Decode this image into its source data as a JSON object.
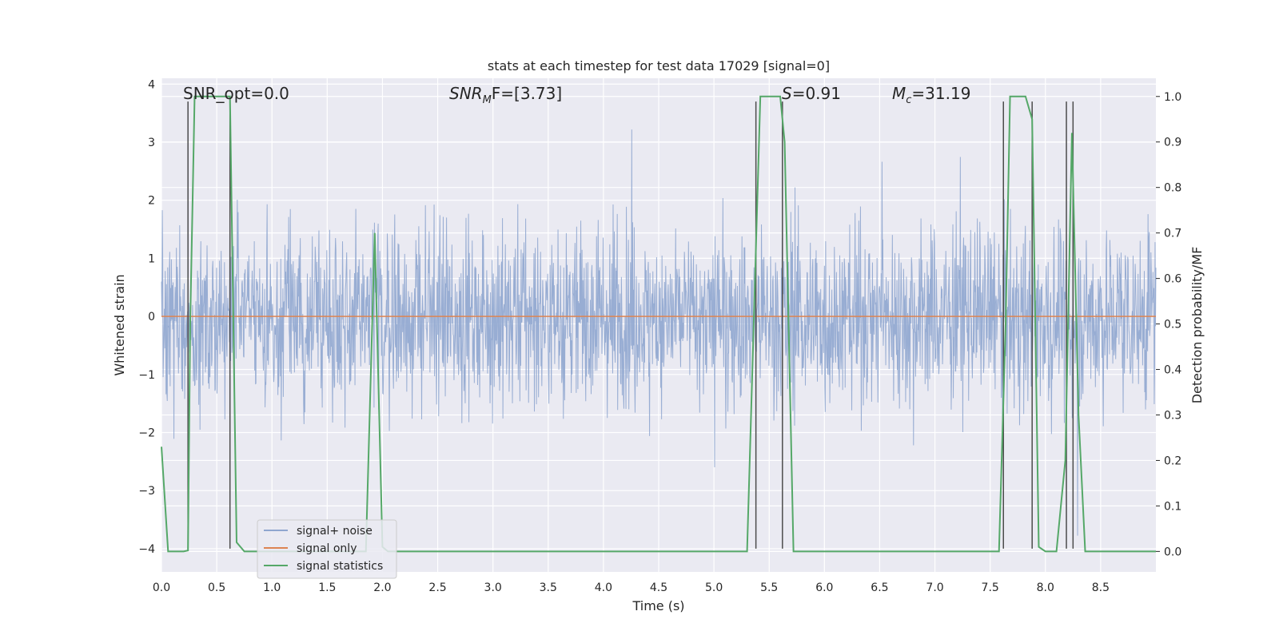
{
  "chart_data": {
    "type": "line",
    "title": "stats at each timestep for test data 17029 [signal=0]",
    "xlabel": "Time (s)",
    "ylabel_left": "Whitened strain",
    "ylabel_right": "Detection probability/MF",
    "xlim": [
      0.0,
      9.0
    ],
    "ylim_left": [
      -4.4,
      4.1
    ],
    "ylim_right": [
      -0.045,
      1.04
    ],
    "x_ticks": [
      "0.0",
      "0.5",
      "1.0",
      "1.5",
      "2.0",
      "2.5",
      "3.0",
      "3.5",
      "4.0",
      "4.5",
      "5.0",
      "5.5",
      "6.0",
      "6.5",
      "7.0",
      "7.5",
      "8.0",
      "8.5"
    ],
    "y_left_ticks": [
      "−4",
      "−3",
      "−2",
      "−1",
      "0",
      "1",
      "2",
      "3",
      "4"
    ],
    "y_right_ticks": [
      "0.0",
      "0.1",
      "0.2",
      "0.3",
      "0.4",
      "0.5",
      "0.6",
      "0.7",
      "0.8",
      "0.9",
      "1.0"
    ],
    "grid": true,
    "legend_position": "lower-left",
    "annotations": {
      "snr_opt": "SNR_opt=0.0",
      "snr_mf_prefix": "SNR",
      "snr_mf_sub": "M",
      "snr_mf_suffix": "F=[3.73]",
      "s_prefix": "S",
      "s_suffix": "=0.91",
      "mc_prefix": "M",
      "mc_sub": "c",
      "mc_suffix": "=31.19"
    },
    "series": [
      {
        "name": "signal+ noise",
        "color": "#8fa6cf",
        "note": "noise-like whitened strain, envelope roughly ±1.6 with peaks to about ±3.8"
      },
      {
        "name": "signal only",
        "color": "#dd8452",
        "values_constant": 0.0
      },
      {
        "name": "signal statistics",
        "color": "#55a868",
        "x": [
          0.0,
          0.06,
          0.1,
          0.15,
          0.2,
          0.24,
          0.26,
          0.3,
          0.35,
          0.45,
          0.55,
          0.62,
          0.68,
          0.75,
          0.8,
          1.0,
          1.5,
          1.85,
          1.93,
          2.0,
          2.05,
          2.3,
          3.0,
          4.0,
          4.5,
          5.0,
          5.3,
          5.36,
          5.42,
          5.46,
          5.55,
          5.6,
          5.64,
          5.72,
          5.8,
          6.5,
          7.0,
          7.5,
          7.58,
          7.64,
          7.68,
          7.72,
          7.78,
          7.82,
          7.88,
          7.94,
          8.0,
          8.1,
          8.18,
          8.24,
          8.3,
          8.36,
          8.5,
          9.0
        ],
        "y": [
          0.23,
          0.0,
          0.0,
          0.0,
          0.0,
          0.002,
          0.5,
          1.0,
          1.0,
          1.0,
          1.0,
          1.0,
          0.02,
          0.0,
          0.0,
          0.0,
          0.0,
          0.0,
          0.7,
          0.01,
          0.0,
          0.0,
          0.0,
          0.0,
          0.0,
          0.0,
          0.0,
          0.5,
          1.0,
          1.0,
          1.0,
          1.0,
          0.9,
          0.0,
          0.0,
          0.0,
          0.0,
          0.0,
          0.0,
          0.5,
          1.0,
          1.0,
          1.0,
          1.0,
          0.95,
          0.01,
          0.0,
          0.0,
          0.2,
          0.92,
          0.3,
          0.0,
          0.0,
          0.0
        ]
      },
      {
        "name": "",
        "color": "#4c4c4c",
        "note": "vertical marker lines",
        "x": [
          0.24,
          0.62,
          5.38,
          5.62,
          7.62,
          7.88,
          8.19,
          8.25
        ],
        "y_range": [
          -4.0,
          3.7
        ]
      }
    ]
  }
}
